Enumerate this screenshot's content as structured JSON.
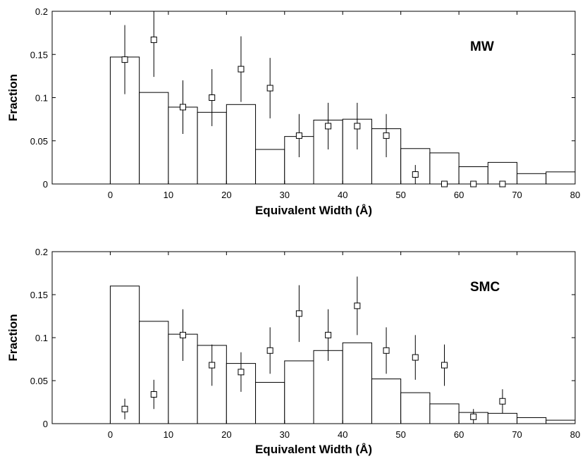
{
  "chart_data": [
    {
      "type": "bar",
      "panel_label": "MW",
      "xlabel": "Equivalent Width (Å)",
      "ylabel": "Fraction",
      "xlim": [
        -10,
        80
      ],
      "ylim": [
        0,
        0.2
      ],
      "xticks": [
        0,
        10,
        20,
        30,
        40,
        50,
        60,
        70,
        80
      ],
      "yticks": [
        0,
        0.05,
        0.1,
        0.15,
        0.2
      ],
      "xtick_labels": [
        "0",
        "10",
        "20",
        "30",
        "40",
        "50",
        "60",
        "70",
        "80"
      ],
      "ytick_labels": [
        "0",
        "0.05",
        "0.1",
        "0.15",
        "0.2"
      ],
      "histogram": {
        "bin_edges": [
          0,
          5,
          10,
          15,
          20,
          25,
          30,
          35,
          40,
          45,
          50,
          55,
          60,
          65,
          70,
          75,
          80
        ],
        "values": [
          0.147,
          0.106,
          0.089,
          0.083,
          0.092,
          0.04,
          0.055,
          0.074,
          0.075,
          0.064,
          0.041,
          0.036,
          0.02,
          0.025,
          0.012,
          0.014
        ]
      },
      "points": {
        "x": [
          2.5,
          7.5,
          12.5,
          17.5,
          22.5,
          27.5,
          32.5,
          37.5,
          42.5,
          47.5,
          52.5,
          57.5,
          62.5,
          67.5
        ],
        "y": [
          0.144,
          0.167,
          0.089,
          0.1,
          0.133,
          0.111,
          0.056,
          0.067,
          0.067,
          0.056,
          0.011,
          0.0,
          0.0,
          0.0
        ],
        "err": [
          0.04,
          0.043,
          0.031,
          0.033,
          0.038,
          0.035,
          0.025,
          0.027,
          0.027,
          0.025,
          0.011,
          0.0,
          0.0,
          0.0
        ]
      }
    },
    {
      "type": "bar",
      "panel_label": "SMC",
      "xlabel": "Equivalent Width (Å)",
      "ylabel": "Fraction",
      "xlim": [
        -10,
        80
      ],
      "ylim": [
        0,
        0.2
      ],
      "xticks": [
        0,
        10,
        20,
        30,
        40,
        50,
        60,
        70,
        80
      ],
      "yticks": [
        0,
        0.05,
        0.1,
        0.15,
        0.2
      ],
      "xtick_labels": [
        "0",
        "10",
        "20",
        "30",
        "40",
        "50",
        "60",
        "70",
        "80"
      ],
      "ytick_labels": [
        "0",
        "0.05",
        "0.1",
        "0.15",
        "0.2"
      ],
      "histogram": {
        "bin_edges": [
          0,
          5,
          10,
          15,
          20,
          25,
          30,
          35,
          40,
          45,
          50,
          55,
          60,
          65,
          70,
          75,
          80
        ],
        "values": [
          0.16,
          0.119,
          0.104,
          0.091,
          0.07,
          0.048,
          0.073,
          0.085,
          0.094,
          0.052,
          0.036,
          0.023,
          0.013,
          0.012,
          0.007,
          0.004
        ]
      },
      "points": {
        "x": [
          2.5,
          7.5,
          12.5,
          17.5,
          22.5,
          27.5,
          32.5,
          37.5,
          42.5,
          47.5,
          52.5,
          57.5,
          62.5,
          67.5
        ],
        "y": [
          0.017,
          0.034,
          0.103,
          0.068,
          0.06,
          0.085,
          0.128,
          0.103,
          0.137,
          0.085,
          0.077,
          0.068,
          0.008,
          0.026
        ],
        "err": [
          0.012,
          0.017,
          0.03,
          0.024,
          0.023,
          0.027,
          0.033,
          0.03,
          0.034,
          0.027,
          0.026,
          0.024,
          0.009,
          0.014
        ]
      }
    }
  ]
}
